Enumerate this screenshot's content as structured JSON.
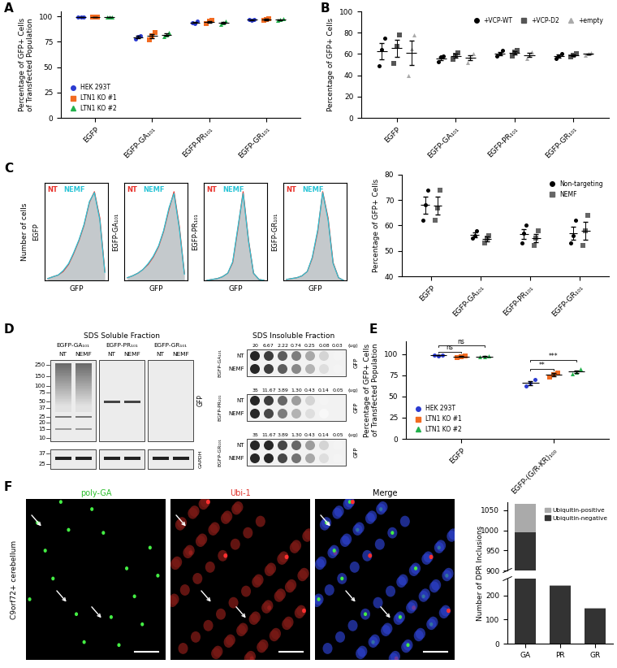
{
  "panel_labels": [
    "A",
    "B",
    "C",
    "D",
    "E",
    "F"
  ],
  "chart_data": [
    {
      "type": "scatter",
      "categories": [
        "EGFP",
        "EGFP-GA₁₀₁",
        "EGFP-PR₁₀₁",
        "EGFP-GR₁₀₁"
      ],
      "ylabel": "Percentage of GFP+ Cells\nof Transfected Population",
      "ylim": [
        0,
        105
      ],
      "yticks": [
        0,
        25,
        50,
        75,
        100
      ],
      "legend": "lower left",
      "series": [
        {
          "name": "HEK 293T",
          "color": "#2b3bd1",
          "marker": "circle",
          "values": [
            [
              99.5,
              99.2,
              99.6
            ],
            [
              78,
              80,
              81
            ],
            [
              94,
              93,
              95
            ],
            [
              97,
              96,
              97
            ]
          ],
          "mean": [
            99.4,
            79.7,
            94.0,
            96.7
          ],
          "error": [
            0.1,
            0.9,
            0.6,
            0.3
          ]
        },
        {
          "name": "LTN1 KO #1",
          "color": "#f26b21",
          "marker": "square",
          "values": [
            [
              99.3,
              99.1,
              99.4
            ],
            [
              77,
              81,
              84
            ],
            [
              93,
              95,
              96
            ],
            [
              96,
              97,
              98
            ]
          ],
          "mean": [
            99.3,
            80.7,
            94.7,
            97.0
          ],
          "error": [
            0.1,
            2.0,
            0.9,
            0.6
          ]
        },
        {
          "name": "LTN1 KO #2",
          "color": "#22b14c",
          "marker": "triangle",
          "values": [
            [
              99.0,
              99.3,
              99.5
            ],
            [
              80,
              82,
              84
            ],
            [
              92,
              94,
              95
            ],
            [
              96,
              97,
              97.5
            ]
          ],
          "mean": [
            99.3,
            82.0,
            93.7,
            96.8
          ],
          "error": [
            0.1,
            1.2,
            0.9,
            0.4
          ]
        }
      ]
    },
    {
      "type": "scatter",
      "categories": [
        "EGFP",
        "EGFP-GA₁₀₁",
        "EGFP-PR₁₀₁",
        "EGFP-GR₁₀₁"
      ],
      "ylabel": "Percentage of GFP+ Cells",
      "ylim": [
        0,
        100
      ],
      "yticks": [
        0,
        20,
        40,
        60,
        80,
        100
      ],
      "legend": "upper right",
      "series": [
        {
          "name": "+VCP-WT",
          "color": "#000000",
          "marker": "circle",
          "values": [
            [
              49,
              64,
              75
            ],
            [
              53,
              57,
              58
            ],
            [
              58,
              60,
              63
            ],
            [
              56,
              58,
              60
            ]
          ],
          "mean": [
            62.7,
            56.0,
            60.3,
            58.0
          ],
          "error": [
            7.6,
            1.5,
            1.5,
            1.2
          ]
        },
        {
          "name": "+VCP-D2",
          "color": "#555555",
          "marker": "square",
          "values": [
            [
              51,
              67,
              78
            ],
            [
              55,
              59,
              61
            ],
            [
              58,
              62,
              63
            ],
            [
              57,
              59,
              60
            ]
          ],
          "mean": [
            65.3,
            58.3,
            61.0,
            58.7
          ],
          "error": [
            7.8,
            1.8,
            1.5,
            0.9
          ]
        },
        {
          "name": "+empty",
          "color": "#aaaaaa",
          "marker": "triangle",
          "values": [
            [
              40,
              65,
              78
            ],
            [
              52,
              57,
              60
            ],
            [
              56,
              59,
              62
            ],
            [
              59,
              60,
              61
            ]
          ],
          "mean": [
            61.0,
            56.3,
            59.0,
            60.0
          ],
          "error": [
            11.2,
            2.3,
            1.7,
            0.6
          ]
        }
      ]
    },
    {
      "type": "area",
      "ylabel": "Number of cells",
      "annotation": "EGFP",
      "xlabel": "GFP",
      "log": "x",
      "tick_labels": false,
      "xlim": [
        0.5,
        600000
      ],
      "ylim": [
        0,
        110
      ],
      "x": [
        1,
        3,
        10,
        30,
        100,
        300,
        1000,
        3000,
        10000,
        30000,
        100000,
        300000
      ],
      "series": [
        {
          "name": "NT",
          "color": "#e8322b",
          "values": [
            2,
            4,
            6,
            10,
            18,
            30,
            45,
            62,
            88,
            100,
            70,
            10
          ]
        },
        {
          "name": "NEMF",
          "color": "#29c4d6",
          "values": [
            2,
            4,
            6,
            11,
            19,
            31,
            46,
            63,
            89,
            99,
            68,
            9
          ]
        }
      ]
    },
    {
      "type": "area",
      "annotation": "EGFP-GA₁₀₁",
      "xlabel": "GFP",
      "log": "x",
      "tick_labels": false,
      "xlim": [
        0.5,
        600000
      ],
      "ylim": [
        0,
        110
      ],
      "x": [
        1,
        3,
        10,
        30,
        100,
        300,
        1000,
        3000,
        10000,
        30000,
        100000,
        300000
      ],
      "series": [
        {
          "name": "NT",
          "color": "#e8322b",
          "values": [
            3,
            5,
            8,
            12,
            18,
            26,
            38,
            55,
            80,
            100,
            60,
            8
          ]
        },
        {
          "name": "NEMF",
          "color": "#29c4d6",
          "values": [
            3,
            5,
            8,
            12,
            19,
            27,
            39,
            56,
            82,
            98,
            58,
            7
          ]
        }
      ]
    },
    {
      "type": "area",
      "annotation": "EGFP-PR₁₀₁",
      "xlabel": "GFP",
      "log": "x",
      "tick_labels": false,
      "xlim": [
        0.5,
        600000
      ],
      "ylim": [
        0,
        110
      ],
      "x": [
        1,
        3,
        10,
        30,
        100,
        300,
        1000,
        3000,
        10000,
        30000,
        100000,
        300000
      ],
      "series": [
        {
          "name": "NT",
          "color": "#e8322b",
          "values": [
            0,
            1,
            2,
            4,
            8,
            20,
            60,
            100,
            45,
            8,
            1,
            0
          ]
        },
        {
          "name": "NEMF",
          "color": "#29c4d6",
          "values": [
            0,
            1,
            2,
            4,
            8,
            21,
            62,
            98,
            44,
            8,
            1,
            0
          ]
        }
      ]
    },
    {
      "type": "area",
      "annotation": "EGFP-GR₁₀₁",
      "xlabel": "GFP",
      "log": "x",
      "tick_labels": false,
      "xlim": [
        0.5,
        600000
      ],
      "ylim": [
        0,
        110
      ],
      "x": [
        1,
        3,
        10,
        30,
        100,
        300,
        1000,
        3000,
        10000,
        30000,
        100000,
        300000
      ],
      "series": [
        {
          "name": "NT",
          "color": "#e8322b",
          "values": [
            1,
            2,
            3,
            5,
            10,
            25,
            55,
            100,
            70,
            20,
            3,
            0
          ]
        },
        {
          "name": "NEMF",
          "color": "#29c4d6",
          "values": [
            1,
            2,
            3,
            5,
            10,
            26,
            57,
            99,
            68,
            19,
            3,
            0
          ]
        }
      ]
    },
    {
      "type": "scatter",
      "categories": [
        "EGFP",
        "EGFP-GA₁₀₁",
        "EGFP-PR₁₀₁",
        "EGFP-GR₁₀₁"
      ],
      "ylabel": "Percentage of GFP+ Cells",
      "ylim": [
        40,
        80
      ],
      "yticks": [
        40,
        50,
        60,
        70,
        80
      ],
      "legend": "upper right",
      "series": [
        {
          "name": "Non-targeting",
          "color": "#000000",
          "marker": "circle",
          "values": [
            [
              62,
              68,
              74
            ],
            [
              55,
              56,
              58
            ],
            [
              53,
              57,
              60
            ],
            [
              53,
              56,
              62
            ]
          ],
          "mean": [
            68.0,
            56.3,
            56.7,
            57.0
          ],
          "error": [
            3.5,
            0.9,
            2.0,
            2.6
          ]
        },
        {
          "name": "NEMF",
          "color": "#666666",
          "marker": "square",
          "values": [
            [
              62,
              67,
              74
            ],
            [
              53,
              55,
              56
            ],
            [
              52,
              55,
              58
            ],
            [
              52,
              58,
              64
            ]
          ],
          "mean": [
            67.7,
            54.7,
            55.0,
            58.0
          ],
          "error": [
            3.5,
            0.9,
            1.7,
            3.5
          ]
        }
      ]
    },
    {
      "type": "scatter",
      "categories": [
        "EGFP",
        "EGFP-(G/R-KR)₁₀₀"
      ],
      "ylabel": "Percentage of GFP+ Cells\nof Transfected Population",
      "ylim": [
        0,
        115
      ],
      "yticks": [
        0,
        25,
        50,
        75,
        100
      ],
      "legend": "lower left",
      "series": [
        {
          "name": "HEK 293T",
          "color": "#2b3bd1",
          "marker": "circle",
          "values": [
            [
              98.5,
              98.2,
              98.8
            ],
            [
              62,
              66,
              70
            ]
          ],
          "mean": [
            98.5,
            66.0
          ],
          "error": [
            0.2,
            2.3
          ]
        },
        {
          "name": "LTN1 KO #1",
          "color": "#f26b21",
          "marker": "square",
          "values": [
            [
              96,
              97,
              98
            ],
            [
              73,
              76,
              78
            ]
          ],
          "mean": [
            97.0,
            75.7
          ],
          "error": [
            0.6,
            1.5
          ]
        },
        {
          "name": "LTN1 KO #2",
          "color": "#22b14c",
          "marker": "triangle",
          "values": [
            [
              96.5,
              97,
              98
            ],
            [
              77,
              79,
              82
            ]
          ],
          "mean": [
            97.2,
            79.3
          ],
          "error": [
            0.4,
            1.5
          ]
        }
      ],
      "annotations": [
        {
          "category": "EGFP",
          "groups": [
            "HEK 293T",
            "LTN1 KO #1"
          ],
          "label": "ns"
        },
        {
          "category": "EGFP",
          "groups": [
            "HEK 293T",
            "LTN1 KO #2"
          ],
          "label": "ns"
        },
        {
          "category": "EGFP-(G/R-KR)₁₀₀",
          "groups": [
            "HEK 293T",
            "LTN1 KO #1"
          ],
          "label": "**"
        },
        {
          "category": "EGFP-(G/R-KR)₁₀₀",
          "groups": [
            "HEK 293T",
            "LTN1 KO #2"
          ],
          "label": "***"
        }
      ]
    },
    {
      "type": "bar",
      "stacked": true,
      "categories": [
        "GA",
        "PR",
        "GR"
      ],
      "ylabel": "Number of DPR Inclusions",
      "ylim": [
        [
          0,
          270
        ],
        [
          900,
          1070
        ]
      ],
      "yticks": [
        0,
        100,
        200,
        900,
        950,
        1000,
        1050
      ],
      "legend": "upper right",
      "series": [
        {
          "name": "Ubiquitin-negative",
          "color": "#333333",
          "values": [
            995,
            240,
            145
          ]
        },
        {
          "name": "Ubiquitin-positive",
          "color": "#aaaaaa",
          "values": [
            70,
            3,
            5
          ]
        }
      ]
    }
  ],
  "blot": {
    "title": "SDS Soluble Fraction",
    "constructs": [
      "EGFP-GA₁₀₁",
      "EGFP-PR₁₀₁",
      "EGFP-GR₁₀₁"
    ],
    "lanes": [
      "NT",
      "NEMF"
    ],
    "markers": [
      250,
      150,
      100,
      75,
      50,
      37,
      25,
      20,
      15,
      10
    ],
    "antibody": "GFP",
    "loading_control": {
      "antibody": "GAPDH",
      "markers": [
        37,
        25
      ]
    }
  },
  "dot_blot": {
    "title": "SDS Insoluble Fraction",
    "unit": "(ug)",
    "antibody": "GFP",
    "samples": [
      "NT",
      "NEMF"
    ],
    "rows": [
      {
        "construct": "EGFP-GA₁₀₁",
        "amounts": [
          "20",
          "6.67",
          "2.22",
          "0.74",
          "0.25",
          "0.08",
          "0.03"
        ],
        "signal": [
          [
            1.0,
            0.9,
            0.75,
            0.6,
            0.4,
            0.2,
            0.05
          ],
          [
            1.0,
            0.9,
            0.75,
            0.55,
            0.35,
            0.15,
            0.05
          ]
        ]
      },
      {
        "construct": "EGFP-PR₁₀₁",
        "amounts": [
          "35",
          "11.67",
          "3.89",
          "1.30",
          "0.43",
          "0.14",
          "0.05"
        ],
        "signal": [
          [
            1.0,
            0.9,
            0.7,
            0.45,
            0.2,
            0.05,
            0
          ],
          [
            1.0,
            0.85,
            0.6,
            0.35,
            0.15,
            0.03,
            0
          ]
        ]
      },
      {
        "construct": "EGFP-GR₁₀₁",
        "amounts": [
          "35",
          "11.67",
          "3.89",
          "1.30",
          "0.43",
          "0.14",
          "0.05"
        ],
        "signal": [
          [
            1.0,
            1.0,
            0.85,
            0.7,
            0.45,
            0.2,
            0.05
          ],
          [
            1.0,
            1.0,
            0.85,
            0.65,
            0.4,
            0.15,
            0.05
          ]
        ]
      }
    ]
  },
  "micrographs": {
    "panels": [
      "poly-GA",
      "Ubi-1",
      "Merge"
    ],
    "side_label": "C9orf72+ cerebellum"
  }
}
